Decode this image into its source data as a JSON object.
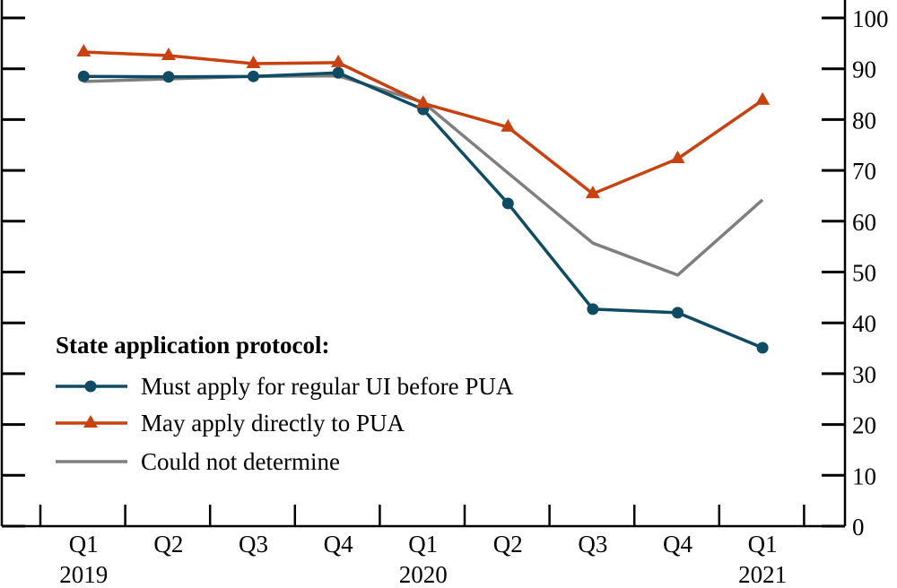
{
  "chart_data": {
    "type": "line",
    "title": "",
    "xlabel": "",
    "ylabel": "",
    "ylim": [
      0,
      100
    ],
    "yticks": [
      0,
      10,
      20,
      30,
      40,
      50,
      60,
      70,
      80,
      90,
      100
    ],
    "y_axis_side": "right",
    "grid": false,
    "categories": [
      "Q1 2019",
      "Q2 2019",
      "Q3 2019",
      "Q4 2019",
      "Q1 2020",
      "Q2 2020",
      "Q3 2020",
      "Q4 2020",
      "Q1 2021"
    ],
    "category_labels": [
      {
        "quarter": "Q1",
        "year": "2019"
      },
      {
        "quarter": "Q2",
        "year": ""
      },
      {
        "quarter": "Q3",
        "year": ""
      },
      {
        "quarter": "Q4",
        "year": ""
      },
      {
        "quarter": "Q1",
        "year": "2020"
      },
      {
        "quarter": "Q2",
        "year": ""
      },
      {
        "quarter": "Q3",
        "year": ""
      },
      {
        "quarter": "Q4",
        "year": ""
      },
      {
        "quarter": "Q1",
        "year": "2021"
      }
    ],
    "legend": {
      "title": "State application protocol:",
      "placement": "bottom-left"
    },
    "series": [
      {
        "name": "Must apply for regular UI before PUA",
        "color": "#0F4C64",
        "marker": "circle",
        "values": [
          88.5,
          88.4,
          88.5,
          89.2,
          82.0,
          63.5,
          42.7,
          42.0,
          35.1
        ]
      },
      {
        "name": "May apply directly to PUA",
        "color": "#C8410F",
        "marker": "triangle",
        "values": [
          93.3,
          92.6,
          91.0,
          91.2,
          83.2,
          78.5,
          65.4,
          72.3,
          83.8
        ]
      },
      {
        "name": "Could not determine",
        "color": "#7F7F7F",
        "marker": "none",
        "values": [
          87.5,
          88.0,
          88.5,
          88.6,
          83.4,
          69.5,
          55.7,
          49.4,
          64.2
        ]
      }
    ]
  }
}
